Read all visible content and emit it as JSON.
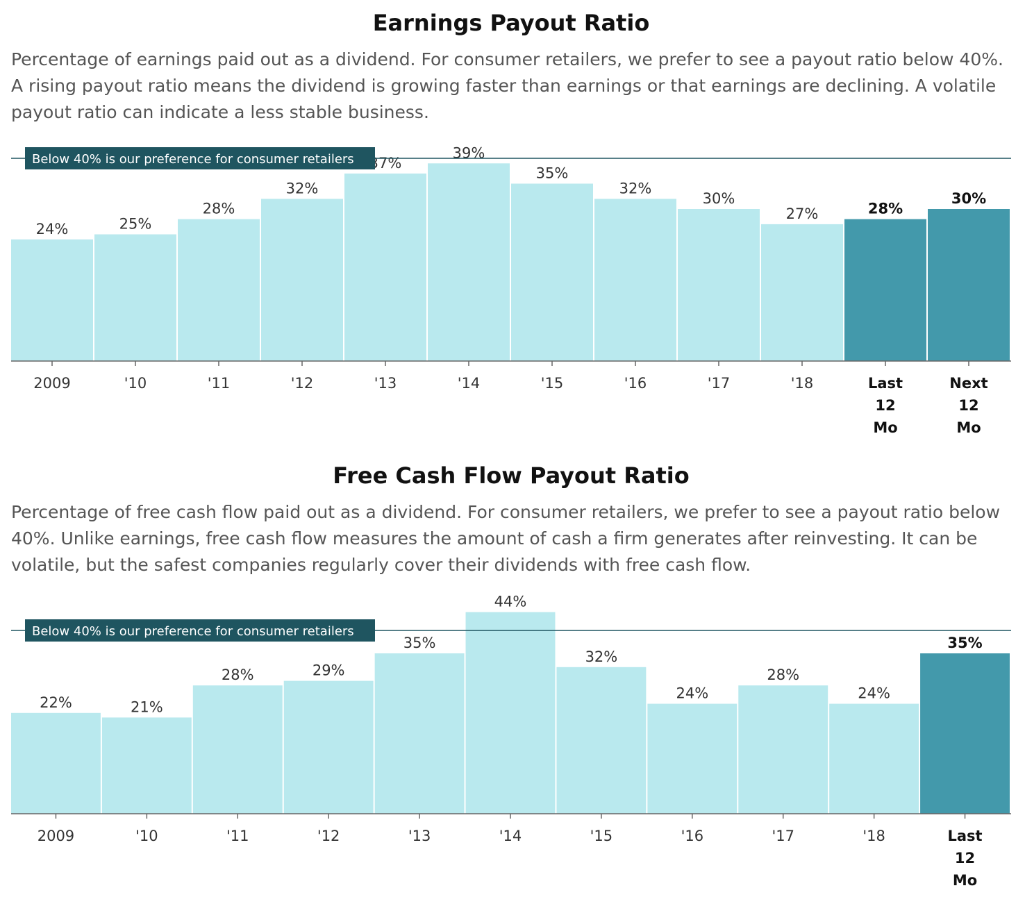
{
  "chart_data": [
    {
      "type": "bar",
      "title": "Earnings Payout Ratio",
      "description": "Percentage of earnings paid out as a dividend. For consumer retailers, we prefer to see a payout ratio below 40%. A rising payout ratio means the dividend is growing faster than earnings or that earnings are declining. A volatile payout ratio can indicate a less stable business.",
      "categories": [
        "2009",
        "'10",
        "'11",
        "'12",
        "'13",
        "'14",
        "'15",
        "'16",
        "'17",
        "'18",
        "Last 12 Mo",
        "Next 12 Mo"
      ],
      "values": [
        24,
        25,
        28,
        32,
        37,
        39,
        35,
        32,
        30,
        27,
        28,
        30
      ],
      "value_labels": [
        "24%",
        "25%",
        "28%",
        "32%",
        "37%",
        "39%",
        "35%",
        "32%",
        "30%",
        "27%",
        "28%",
        "30%"
      ],
      "highlighted": [
        false,
        false,
        false,
        false,
        false,
        false,
        false,
        false,
        false,
        false,
        true,
        true
      ],
      "reference_line": {
        "value": 40,
        "label": "Below 40% is our preference for consumer retailers"
      },
      "xlabel": "",
      "ylabel": "",
      "ylim": [
        0,
        42
      ],
      "grid": false,
      "legend": "none"
    },
    {
      "type": "bar",
      "title": "Free Cash Flow Payout Ratio",
      "description": "Percentage of free cash flow paid out as a dividend. For consumer retailers, we prefer to see a payout ratio below 40%. Unlike earnings, free cash flow measures the amount of cash a firm generates after reinvesting. It can be volatile, but the safest companies regularly cover their dividends with free cash flow.",
      "categories": [
        "2009",
        "'10",
        "'11",
        "'12",
        "'13",
        "'14",
        "'15",
        "'16",
        "'17",
        "'18",
        "Last 12 Mo"
      ],
      "values": [
        22,
        21,
        28,
        29,
        35,
        44,
        32,
        24,
        28,
        24,
        35
      ],
      "value_labels": [
        "22%",
        "21%",
        "28%",
        "29%",
        "35%",
        "44%",
        "32%",
        "24%",
        "28%",
        "24%",
        "35%"
      ],
      "highlighted": [
        false,
        false,
        false,
        false,
        false,
        false,
        false,
        false,
        false,
        false,
        true
      ],
      "reference_line": {
        "value": 40,
        "label": "Below 40% is our preference for consumer retailers"
      },
      "xlabel": "",
      "ylabel": "",
      "ylim": [
        0,
        46
      ],
      "grid": false,
      "legend": "none"
    }
  ],
  "colors": {
    "bar": "#b9e9ee",
    "bar_highlight": "#4399ab",
    "reference": "#1f5560",
    "axis": "#666666",
    "label": "#333333"
  }
}
